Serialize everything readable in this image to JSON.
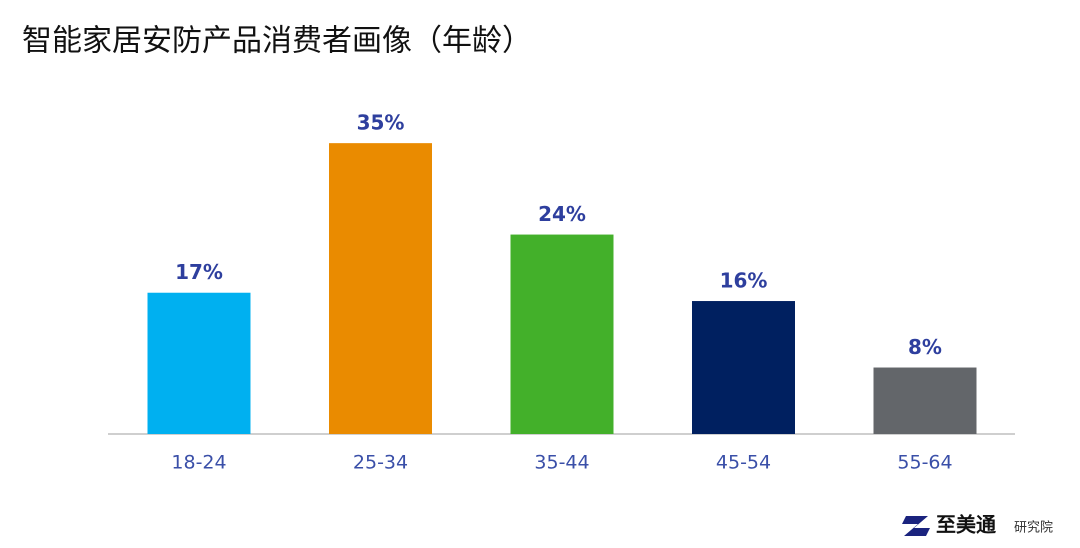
{
  "chart_data": {
    "type": "bar",
    "title": "智能家居安防产品消费者画像（年龄）",
    "categories": [
      "18-24",
      "25-34",
      "35-44",
      "45-54",
      "55-64"
    ],
    "values": [
      17,
      35,
      24,
      16,
      8
    ],
    "value_labels": [
      "17%",
      "35%",
      "24%",
      "16%",
      "8%"
    ],
    "colors": [
      "#00b0f0",
      "#ea8b00",
      "#43b02a",
      "#002060",
      "#63666a"
    ]
  },
  "footer": {
    "brand": "至美通",
    "sub": "研究院"
  }
}
